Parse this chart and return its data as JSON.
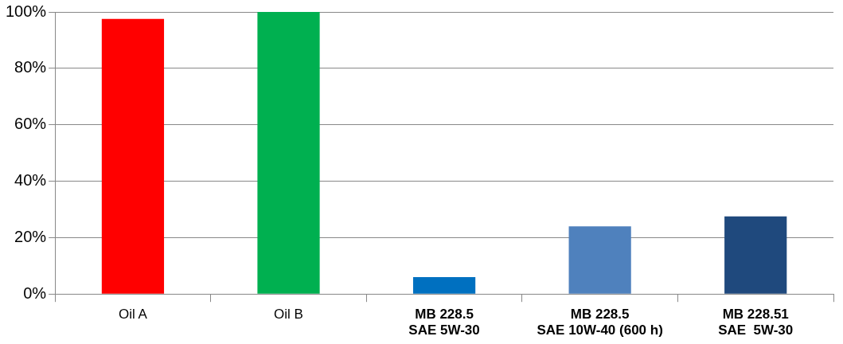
{
  "chart_data": {
    "type": "bar",
    "categories": [
      "Oil A",
      "Oil B",
      "MB 228.5\nSAE 5W-30",
      "MB 228.5\nSAE 10W-40 (600 h)",
      "MB 228.51\nSAE  5W-30"
    ],
    "values": [
      97.5,
      100,
      6,
      24,
      27.5
    ],
    "colors": [
      "#ff0000",
      "#00b050",
      "#0070c0",
      "#4f81bd",
      "#1f497d"
    ],
    "ylim": [
      0,
      100
    ],
    "yticks": [
      {
        "value": 0,
        "label": "0%"
      },
      {
        "value": 20,
        "label": "20%"
      },
      {
        "value": 40,
        "label": "40%"
      },
      {
        "value": 60,
        "label": "60%"
      },
      {
        "value": 80,
        "label": "80%"
      },
      {
        "value": 100,
        "label": "100%"
      }
    ],
    "grid": "y",
    "legend": false
  }
}
